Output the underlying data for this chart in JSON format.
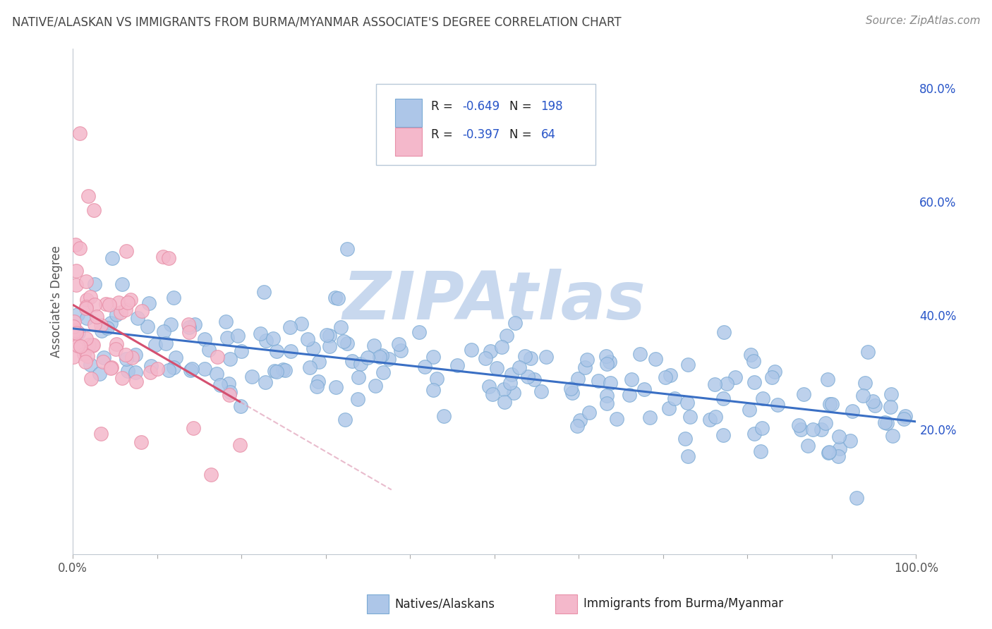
{
  "title": "NATIVE/ALASKAN VS IMMIGRANTS FROM BURMA/MYANMAR ASSOCIATE'S DEGREE CORRELATION CHART",
  "source": "Source: ZipAtlas.com",
  "ylabel": "Associate's Degree",
  "right_yticks": [
    0.2,
    0.4,
    0.6,
    0.8
  ],
  "right_yticklabels": [
    "20.0%",
    "40.0%",
    "60.0%",
    "80.0%"
  ],
  "blue_R": -0.649,
  "blue_N": 198,
  "pink_R": -0.397,
  "pink_N": 64,
  "blue_color": "#adc6e8",
  "blue_edge": "#7aaad4",
  "blue_line": "#3a6fc4",
  "pink_color": "#f4b8cb",
  "pink_edge": "#e890a8",
  "pink_line": "#d45070",
  "pink_dash_color": "#e0a0b8",
  "watermark": "ZIPAtlas",
  "watermark_color": "#c8d8ee",
  "background": "#ffffff",
  "grid_color": "#c8d4e0",
  "title_color": "#444444",
  "source_color": "#888888",
  "legend_label_color": "#222222",
  "legend_value_color": "#2855c8",
  "xlim": [
    0.0,
    1.0
  ],
  "ylim": [
    -0.02,
    0.87
  ]
}
